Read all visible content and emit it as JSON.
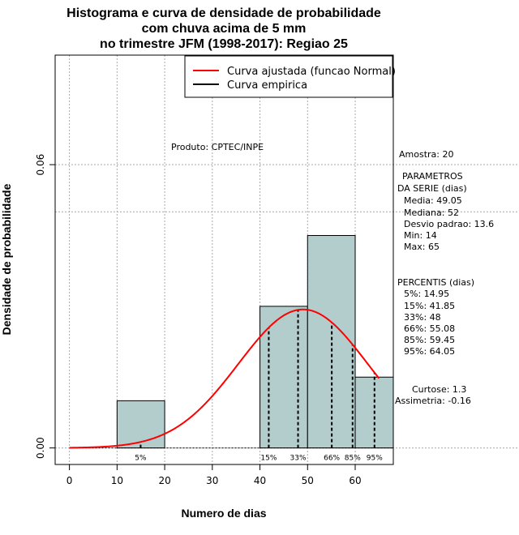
{
  "chart_data": {
    "type": "bar",
    "title_lines": [
      "Histograma e curva de densidade de probabilidade",
      "com chuva acima de 5 mm",
      "no trimestre JFM (1998-2017): Regiao 25"
    ],
    "xlabel": "Numero de dias",
    "ylabel": "Densidade de probabilidade",
    "xlim": [
      -3,
      68
    ],
    "ylim": [
      -0.0035,
      0.0832
    ],
    "x_ticks": [
      0,
      10,
      20,
      30,
      40,
      50,
      60
    ],
    "y_ticks": [
      {
        "value": 0.0,
        "label": "0.00"
      },
      {
        "value": 0.06,
        "label": "0.06"
      }
    ],
    "grid": true,
    "grid_y_extra": [
      0.05
    ],
    "bins": [
      {
        "x0": 10,
        "x1": 20,
        "density": 0.01
      },
      {
        "x0": 20,
        "x1": 30,
        "density": 0.0
      },
      {
        "x0": 30,
        "x1": 40,
        "density": 0.0
      },
      {
        "x0": 40,
        "x1": 50,
        "density": 0.03
      },
      {
        "x0": 50,
        "x1": 60,
        "density": 0.045
      },
      {
        "x0": 60,
        "x1": 68,
        "density": 0.015
      }
    ],
    "fitted_curve": {
      "name": "Curva ajustada (funcao Normal)",
      "color": "#ff0000",
      "mean": 49.05,
      "sd": 13.6,
      "x_range": [
        0,
        65
      ]
    },
    "empirical_curve": {
      "name": "Curva empirica",
      "color": "#000000"
    },
    "percentile_markers": [
      {
        "label": "5%",
        "value": 14.95
      },
      {
        "label": "15%",
        "value": 41.85
      },
      {
        "label": "33%",
        "value": 48
      },
      {
        "label": "66%",
        "value": 55.08
      },
      {
        "label": "85%",
        "value": 59.45
      },
      {
        "label": "95%",
        "value": 64.05
      }
    ],
    "bar_color": "#b3cccc",
    "legend_position": "top-right",
    "product_note": "Produto: CPTEC/INPE"
  },
  "side_panel": {
    "amostra": "Amostra: 20",
    "params_header_1": "PARAMETROS",
    "params_header_2": "DA SERIE (dias)",
    "media": "Media: 49.05",
    "mediana": "Mediana: 52",
    "desvio": "Desvio padrao: 13.6",
    "min": "Min: 14",
    "max": "Max: 65",
    "percentis_header": "PERCENTIS (dias)",
    "p5": "5%: 14.95",
    "p15": "15%: 41.85",
    "p33": "33%: 48",
    "p66": "66%: 55.08",
    "p85": "85%: 59.45",
    "p95": "95%: 64.05",
    "curtose": "Curtose: 1.3",
    "assimetria": "Assimetria: -0.16"
  }
}
